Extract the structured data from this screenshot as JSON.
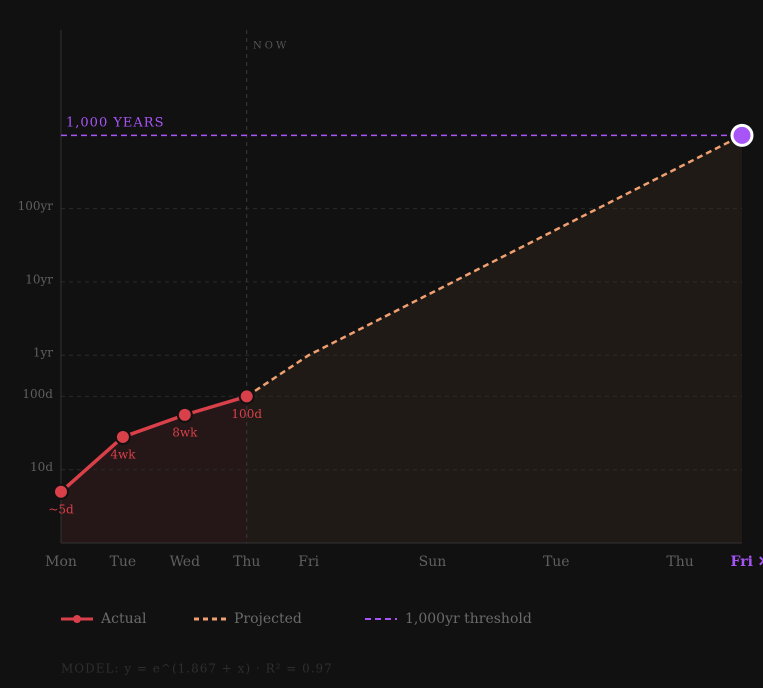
{
  "chart_data": {
    "type": "line",
    "log_scale": true,
    "grid": true,
    "now_label": "NOW",
    "now_x": 3,
    "model_note": "MODEL: y = e^(1.867 + x) · R² = 0.97",
    "xlim": [
      0,
      11
    ],
    "xticks": [
      {
        "value": 0,
        "label": "Mon"
      },
      {
        "value": 1,
        "label": "Tue"
      },
      {
        "value": 2,
        "label": "Wed"
      },
      {
        "value": 3,
        "label": "Thu"
      },
      {
        "value": 4,
        "label": "Fri"
      },
      {
        "value": 6,
        "label": "Sun"
      },
      {
        "value": 8,
        "label": "Tue"
      },
      {
        "value": 10,
        "label": "Thu"
      },
      {
        "value": 11,
        "label": "Fri ✕"
      }
    ],
    "ylim": [
      1,
      10000000
    ],
    "yticks": [
      {
        "value": 10,
        "label": "10d"
      },
      {
        "value": 100,
        "label": "100d"
      },
      {
        "value": 365,
        "label": "1yr"
      },
      {
        "value": 3650,
        "label": "10yr"
      },
      {
        "value": 36500,
        "label": "100yr"
      }
    ],
    "threshold": {
      "name": "1,000yr threshold",
      "label": "1,000 YEARS",
      "value": 365000,
      "color": "#a855f7"
    },
    "series": [
      {
        "name": "Actual",
        "color": "#d9404a",
        "x": [
          0,
          1,
          2,
          3
        ],
        "values": [
          5,
          28,
          56,
          100
        ],
        "value_labels": [
          "~5d",
          "4wk",
          "8wk",
          "100d"
        ]
      },
      {
        "name": "Projected",
        "color": "#f0a070",
        "dashed": true,
        "x": [
          3,
          4,
          11
        ],
        "values": [
          100,
          365,
          365000
        ]
      }
    ]
  }
}
